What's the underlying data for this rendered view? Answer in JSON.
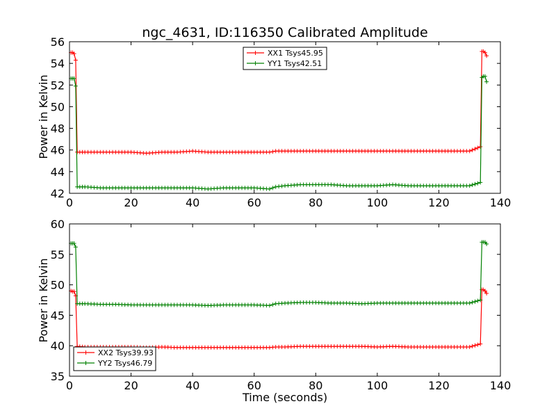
{
  "figure": {
    "title": "ngc_4631, ID:116350 Calibrated Amplitude"
  },
  "colors": {
    "xx": "#ff0000",
    "yy": "#008000",
    "frame": "#000000"
  },
  "chart_data": [
    {
      "type": "line",
      "xlabel": "",
      "ylabel": "Power in Kelvin",
      "xlim": [
        0,
        140
      ],
      "ylim": [
        42,
        56
      ],
      "xticks": [
        "0",
        "20",
        "40",
        "60",
        "80",
        "100",
        "120",
        "140"
      ],
      "yticks": [
        "42",
        "44",
        "46",
        "48",
        "50",
        "52",
        "54",
        "56"
      ],
      "grid": false,
      "legend_position": "top-center",
      "series": [
        {
          "name": "XX1 Tsys45.95",
          "color": "#ff0000",
          "marker": "+",
          "x": [
            0.5,
            1.0,
            1.5,
            2.0,
            2.5,
            5,
            10,
            15,
            20,
            25,
            30,
            35,
            40,
            45,
            50,
            55,
            60,
            65,
            67,
            70,
            75,
            80,
            85,
            90,
            95,
            100,
            105,
            110,
            115,
            120,
            125,
            130,
            133.5,
            134.0,
            134.5,
            135.0,
            135.5
          ],
          "y": [
            55.0,
            55.0,
            54.9,
            54.3,
            45.8,
            45.8,
            45.8,
            45.8,
            45.8,
            45.7,
            45.8,
            45.8,
            45.9,
            45.8,
            45.8,
            45.8,
            45.8,
            45.8,
            45.9,
            45.9,
            45.9,
            45.9,
            45.9,
            45.9,
            45.9,
            45.9,
            45.9,
            45.9,
            45.9,
            45.9,
            45.9,
            45.9,
            46.3,
            55.1,
            55.1,
            55.0,
            54.7
          ]
        },
        {
          "name": "YY1 Tsys42.51",
          "color": "#008000",
          "marker": "+",
          "x": [
            0.5,
            1.0,
            1.5,
            2.0,
            2.5,
            5,
            10,
            15,
            20,
            25,
            30,
            35,
            40,
            45,
            50,
            55,
            60,
            65,
            67,
            70,
            75,
            80,
            85,
            90,
            95,
            100,
            105,
            110,
            115,
            120,
            125,
            130,
            133.5,
            134.0,
            134.5,
            135.0,
            135.5
          ],
          "y": [
            52.6,
            52.6,
            52.6,
            51.9,
            42.6,
            42.6,
            42.5,
            42.5,
            42.5,
            42.5,
            42.5,
            42.5,
            42.5,
            42.4,
            42.5,
            42.5,
            42.5,
            42.4,
            42.6,
            42.7,
            42.8,
            42.8,
            42.8,
            42.7,
            42.7,
            42.7,
            42.8,
            42.7,
            42.7,
            42.7,
            42.7,
            42.7,
            43.0,
            52.7,
            52.8,
            52.8,
            52.3
          ]
        }
      ]
    },
    {
      "type": "line",
      "xlabel": "Time (seconds)",
      "ylabel": "Power in Kelvin",
      "xlim": [
        0,
        140
      ],
      "ylim": [
        35,
        60
      ],
      "xticks": [
        "0",
        "20",
        "40",
        "60",
        "80",
        "100",
        "120",
        "140"
      ],
      "yticks": [
        "35",
        "40",
        "45",
        "50",
        "55",
        "60"
      ],
      "grid": false,
      "legend_position": "bottom-left",
      "series": [
        {
          "name": "XX2 Tsys39.93",
          "color": "#ff0000",
          "marker": "+",
          "x": [
            0.5,
            1.0,
            1.5,
            2.0,
            2.5,
            5,
            10,
            15,
            20,
            25,
            30,
            35,
            40,
            45,
            50,
            55,
            60,
            65,
            67,
            70,
            75,
            80,
            85,
            90,
            95,
            100,
            105,
            110,
            115,
            120,
            125,
            130,
            133.5,
            134.0,
            134.5,
            135.0,
            135.5
          ],
          "y": [
            49.0,
            48.9,
            48.9,
            48.2,
            39.9,
            39.8,
            39.8,
            39.8,
            39.8,
            39.7,
            39.8,
            39.7,
            39.7,
            39.7,
            39.7,
            39.7,
            39.7,
            39.7,
            39.8,
            39.8,
            39.9,
            39.9,
            39.9,
            39.9,
            39.9,
            39.8,
            39.9,
            39.8,
            39.8,
            39.8,
            39.8,
            39.8,
            40.3,
            49.2,
            49.2,
            49.0,
            48.6
          ]
        },
        {
          "name": "YY2 Tsys46.79",
          "color": "#008000",
          "marker": "+",
          "x": [
            0.5,
            1.0,
            1.5,
            2.0,
            2.5,
            5,
            10,
            15,
            20,
            25,
            30,
            35,
            40,
            45,
            50,
            55,
            60,
            65,
            67,
            70,
            75,
            80,
            85,
            90,
            95,
            100,
            105,
            110,
            115,
            120,
            125,
            130,
            133.5,
            134.0,
            134.5,
            135.0,
            135.5
          ],
          "y": [
            56.8,
            56.8,
            56.8,
            56.2,
            46.9,
            46.9,
            46.8,
            46.8,
            46.7,
            46.7,
            46.7,
            46.7,
            46.7,
            46.6,
            46.7,
            46.7,
            46.7,
            46.6,
            46.9,
            47.0,
            47.1,
            47.1,
            47.0,
            47.0,
            46.9,
            47.0,
            47.0,
            47.0,
            47.0,
            47.0,
            47.0,
            47.0,
            47.5,
            57.0,
            57.0,
            57.0,
            56.7
          ]
        }
      ]
    }
  ]
}
